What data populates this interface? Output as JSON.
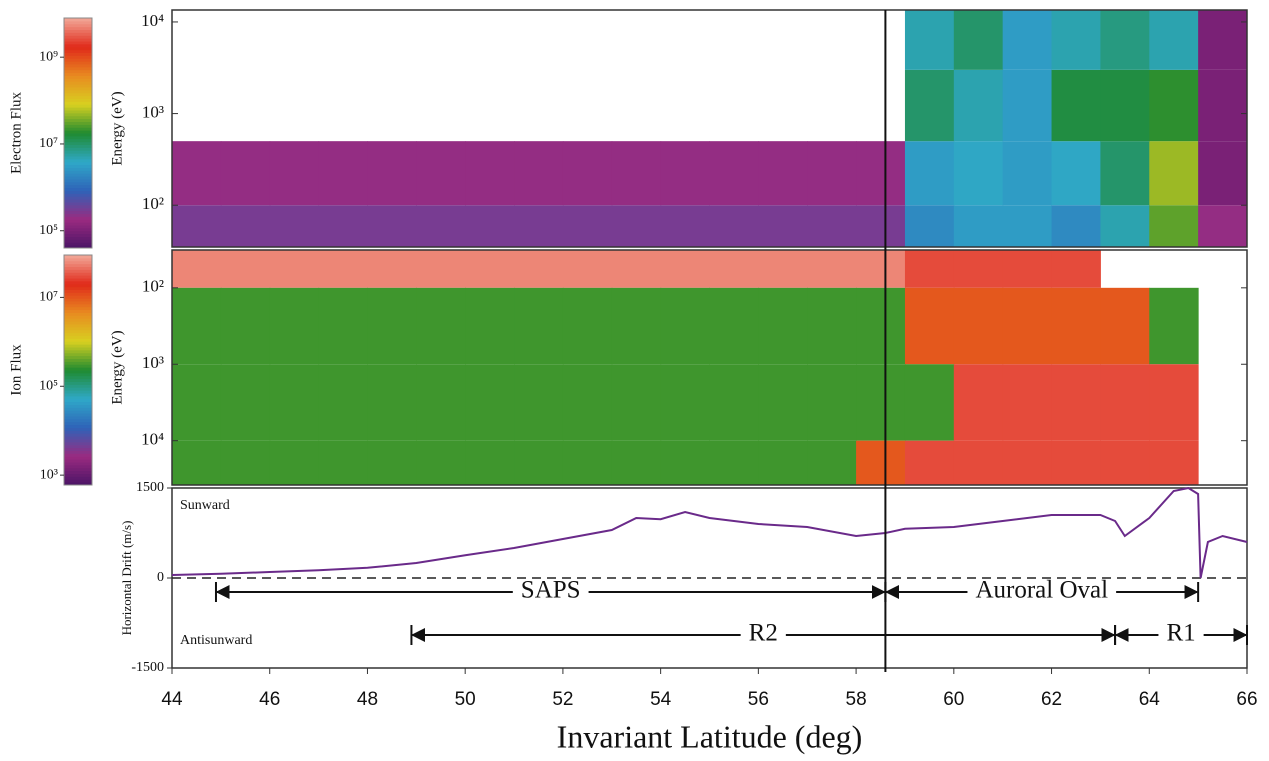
{
  "chart_data": [
    {
      "type": "heatmap",
      "ylabel": "Energy (eV)",
      "colorbar_label": "Electron Flux",
      "xlim": [
        44,
        66
      ],
      "ylim": [
        35,
        13500
      ],
      "log_y": true,
      "invert_y": false,
      "yticks": [
        {
          "value": 100,
          "label": "10²"
        },
        {
          "value": 1000,
          "label": "10³"
        },
        {
          "value": 10000,
          "label": "10⁴"
        }
      ],
      "clim": [
        40000,
        8000000000.0
      ],
      "cticks": [
        {
          "value": 100000.0,
          "label": "10⁵"
        },
        {
          "value": 10000000.0,
          "label": "10⁷"
        },
        {
          "value": 1000000000.0,
          "label": "10⁹"
        }
      ],
      "colormap": [
        "#4a1466",
        "#9a2a80",
        "#2f63b8",
        "#2fa8c8",
        "#1f8a30",
        "#d8d020",
        "#e88a20",
        "#e02a1a",
        "#f2a898"
      ],
      "x_edges": [
        44,
        45,
        46,
        47,
        48,
        49,
        50,
        51,
        52,
        53,
        54,
        55,
        56,
        57,
        58,
        59,
        60,
        61,
        62,
        63,
        64,
        65,
        66
      ],
      "y_edges": [
        35,
        100,
        500,
        3000,
        13500
      ],
      "values": [
        [
          300000.0,
          300000.0,
          300000.0,
          300000.0,
          300000.0,
          300000.0,
          300000.0,
          300000.0,
          300000.0,
          300000.0,
          300000.0,
          300000.0,
          300000.0,
          300000.0,
          300000.0,
          2000000.0,
          3000000.0,
          3000000.0,
          2000000.0,
          5000000.0,
          30000000.0,
          200000.0
        ],
        [
          200000.0,
          200000.0,
          200000.0,
          200000.0,
          200000.0,
          200000.0,
          200000.0,
          200000.0,
          200000.0,
          200000.0,
          200000.0,
          200000.0,
          200000.0,
          200000.0,
          200000.0,
          3000000.0,
          4000000.0,
          3000000.0,
          4000000.0,
          10000000.0,
          50000000.0,
          100000.0
        ],
        [
          null,
          null,
          null,
          null,
          null,
          null,
          null,
          null,
          null,
          null,
          null,
          null,
          null,
          null,
          null,
          10000000.0,
          5000000.0,
          3000000.0,
          15000000.0,
          15000000.0,
          20000000.0,
          100000.0
        ],
        [
          null,
          null,
          null,
          null,
          null,
          null,
          null,
          null,
          null,
          null,
          null,
          null,
          null,
          null,
          null,
          5000000.0,
          10000000.0,
          3000000.0,
          5000000.0,
          8000000.0,
          5000000.0,
          100000.0
        ]
      ]
    },
    {
      "type": "heatmap",
      "ylabel": "Energy (eV)",
      "colorbar_label": "Ion Flux",
      "xlim": [
        44,
        66
      ],
      "ylim": [
        32,
        38000
      ],
      "log_y": true,
      "invert_y": true,
      "yticks": [
        {
          "value": 100,
          "label": "10²"
        },
        {
          "value": 1000,
          "label": "10³"
        },
        {
          "value": 10000,
          "label": "10⁴"
        }
      ],
      "clim": [
        600,
        90000000.0
      ],
      "cticks": [
        {
          "value": 1000,
          "label": "10³"
        },
        {
          "value": 100000.0,
          "label": "10⁵"
        },
        {
          "value": 10000000.0,
          "label": "10⁷"
        }
      ],
      "colormap": [
        "#4a1466",
        "#9a2a80",
        "#2f63b8",
        "#2fa8c8",
        "#1f8a30",
        "#d8d020",
        "#e88a20",
        "#e02a1a",
        "#f2a898"
      ],
      "x_edges": [
        44,
        45,
        46,
        47,
        48,
        49,
        50,
        51,
        52,
        53,
        54,
        55,
        56,
        57,
        58,
        59,
        60,
        61,
        62,
        63,
        64,
        65,
        66
      ],
      "y_edges": [
        32,
        100,
        1000,
        10000,
        38000
      ],
      "values": [
        [
          60000000.0,
          60000000.0,
          60000000.0,
          60000000.0,
          60000000.0,
          60000000.0,
          60000000.0,
          60000000.0,
          60000000.0,
          60000000.0,
          60000000.0,
          60000000.0,
          60000000.0,
          60000000.0,
          60000000.0,
          30000000.0,
          30000000.0,
          30000000.0,
          30000000.0,
          null,
          null,
          null
        ],
        [
          300000.0,
          300000.0,
          300000.0,
          300000.0,
          300000.0,
          300000.0,
          300000.0,
          300000.0,
          300000.0,
          300000.0,
          300000.0,
          300000.0,
          300000.0,
          300000.0,
          300000.0,
          10000000.0,
          10000000.0,
          10000000.0,
          10000000.0,
          10000000.0,
          300000.0,
          null
        ],
        [
          300000.0,
          300000.0,
          300000.0,
          300000.0,
          300000.0,
          300000.0,
          300000.0,
          300000.0,
          300000.0,
          300000.0,
          300000.0,
          300000.0,
          300000.0,
          300000.0,
          300000.0,
          300000.0,
          30000000.0,
          30000000.0,
          30000000.0,
          30000000.0,
          30000000.0,
          null
        ],
        [
          300000.0,
          300000.0,
          300000.0,
          300000.0,
          300000.0,
          300000.0,
          300000.0,
          300000.0,
          300000.0,
          300000.0,
          300000.0,
          300000.0,
          300000.0,
          300000.0,
          10000000.0,
          30000000.0,
          30000000.0,
          30000000.0,
          30000000.0,
          30000000.0,
          30000000.0,
          null
        ]
      ]
    },
    {
      "type": "line",
      "ylabel": "Horizontal Drift (m/s)",
      "xlabel": "Invariant Latitude (deg)",
      "xlim": [
        44,
        66
      ],
      "xticks": [
        44,
        46,
        48,
        50,
        52,
        54,
        56,
        58,
        60,
        62,
        64,
        66
      ],
      "ylim": [
        -1500,
        1500
      ],
      "yticks": [
        -1500,
        0,
        1500
      ],
      "zero_line": true,
      "color": "#6a2a8a",
      "annotations": [
        "Sunward",
        "Antisunward"
      ],
      "x": [
        44,
        45,
        46,
        47,
        48,
        49,
        50,
        51,
        52,
        53,
        53.5,
        54,
        54.5,
        55,
        56,
        57,
        58,
        58.6,
        59,
        60,
        61,
        62,
        63,
        63.3,
        63.5,
        64,
        64.5,
        64.8,
        65,
        65.05,
        65.2,
        65.5,
        66
      ],
      "y": [
        50,
        70,
        100,
        130,
        170,
        250,
        380,
        500,
        650,
        800,
        1000,
        980,
        1100,
        1000,
        900,
        850,
        700,
        750,
        820,
        850,
        950,
        1050,
        1050,
        950,
        700,
        1000,
        1450,
        1500,
        1400,
        0,
        600,
        700,
        600
      ],
      "spans": [
        {
          "label": "SAPS",
          "start": 44.9,
          "end": 58.6
        },
        {
          "label": "Auroral Oval",
          "start": 58.6,
          "end": 65.0
        },
        {
          "label": "R2",
          "start": 48.9,
          "end": 63.3
        },
        {
          "label": "R1",
          "start": 63.3,
          "end": 66
        }
      ]
    }
  ]
}
